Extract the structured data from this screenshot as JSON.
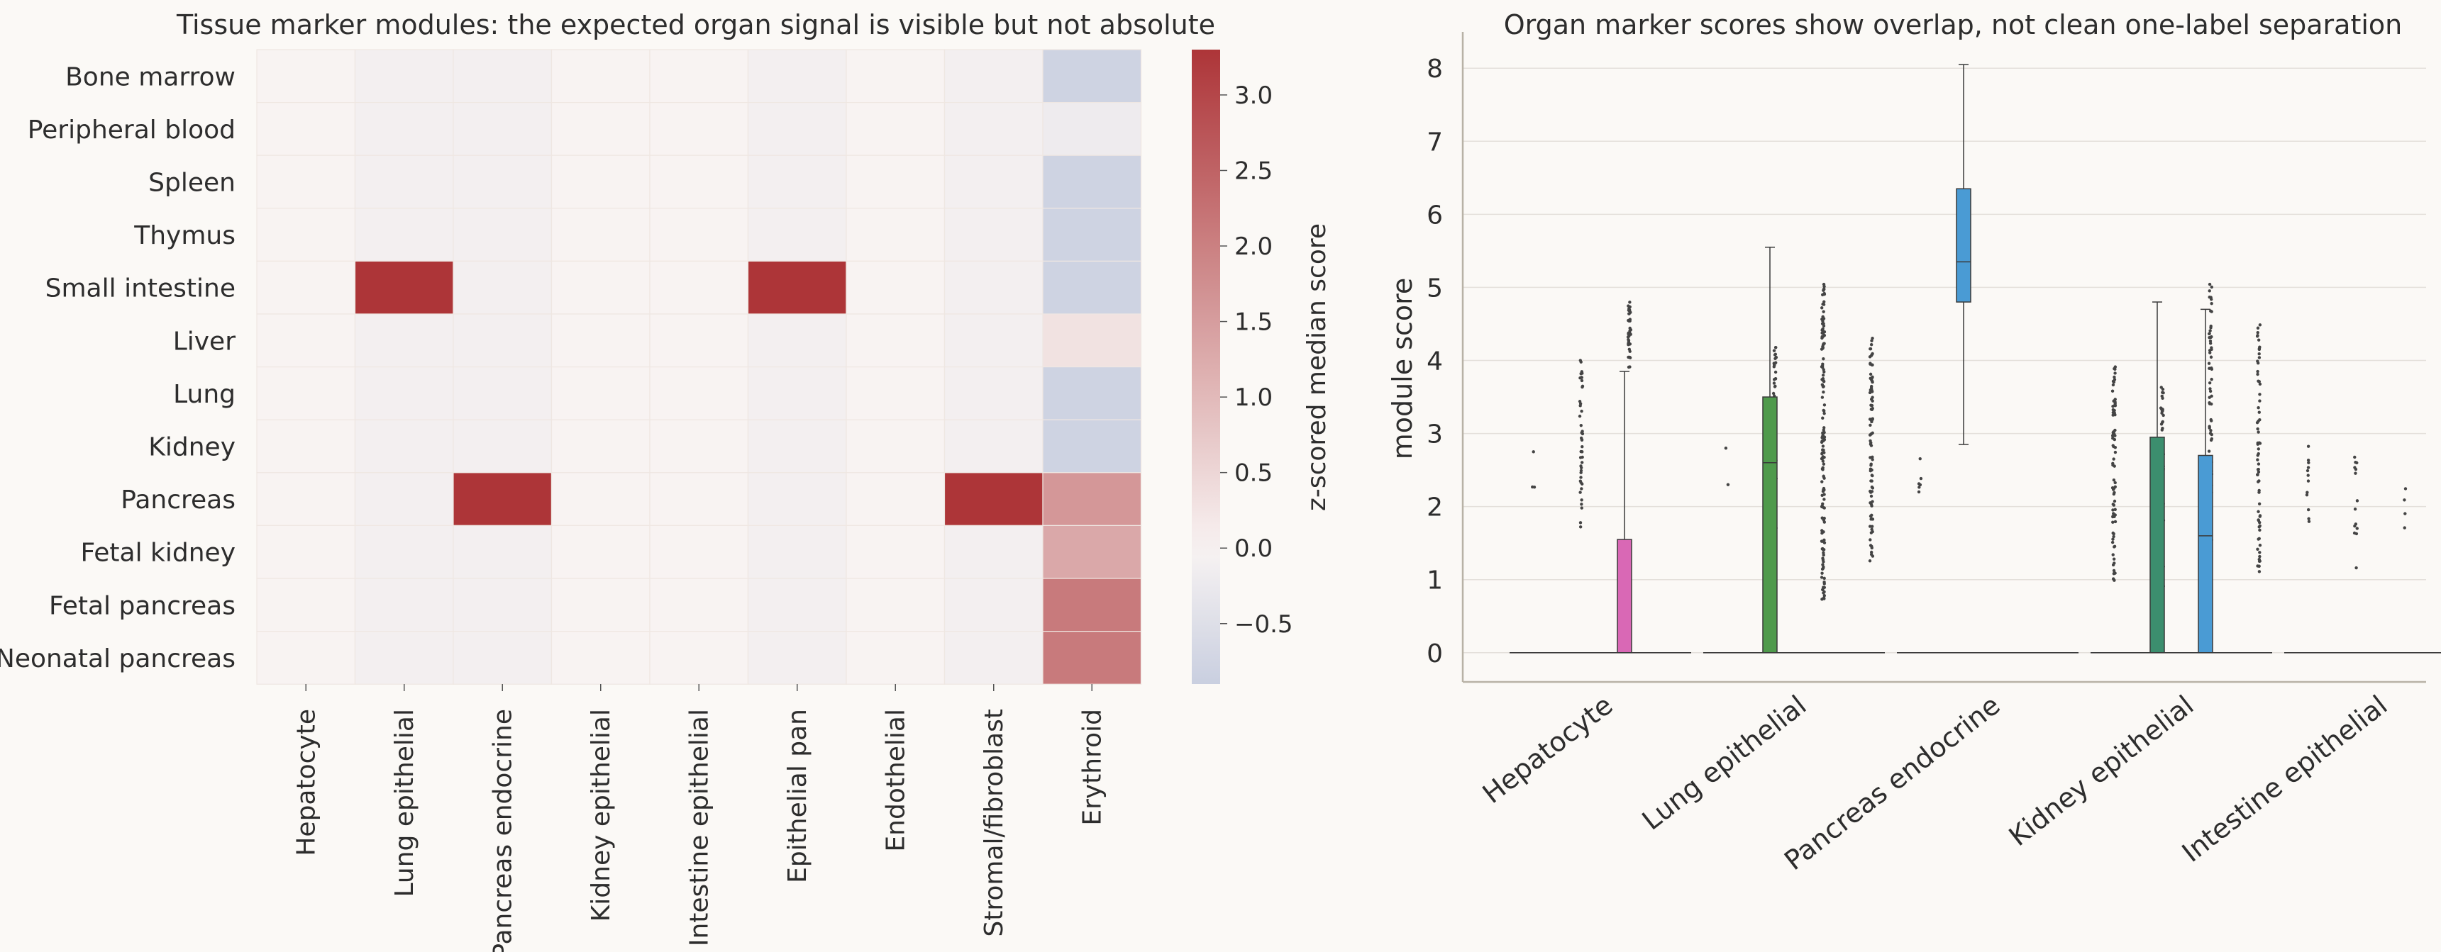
{
  "chart_data": [
    {
      "type": "heatmap",
      "title": "Tissue marker modules: the expected organ signal is visible but not absolute",
      "rows": [
        "Bone marrow",
        "Peripheral blood",
        "Spleen",
        "Thymus",
        "Small intestine",
        "Liver",
        "Lung",
        "Kidney",
        "Pancreas",
        "Fetal kidney",
        "Fetal pancreas",
        "Neonatal pancreas"
      ],
      "columns": [
        "Hepatocyte",
        "Lung epithelial",
        "Pancreas endocrine",
        "Kidney epithelial",
        "Intestine epithelial",
        "Epithelial pan",
        "Endothelial",
        "Stromal/fibroblast",
        "Erythroid"
      ],
      "values": [
        [
          0.0,
          -0.1,
          -0.1,
          0.0,
          0.0,
          -0.1,
          0.0,
          -0.1,
          -0.8
        ],
        [
          0.0,
          -0.1,
          -0.1,
          0.0,
          0.0,
          -0.1,
          0.0,
          -0.1,
          -0.2
        ],
        [
          0.0,
          -0.1,
          -0.1,
          0.0,
          0.0,
          -0.1,
          0.0,
          -0.1,
          -0.8
        ],
        [
          0.0,
          -0.1,
          -0.1,
          0.0,
          0.0,
          -0.1,
          0.0,
          -0.1,
          -0.8
        ],
        [
          0.0,
          3.3,
          -0.1,
          0.0,
          0.0,
          3.3,
          0.0,
          -0.1,
          -0.8
        ],
        [
          0.0,
          -0.1,
          -0.1,
          0.0,
          0.0,
          -0.1,
          0.0,
          -0.1,
          0.3
        ],
        [
          0.0,
          -0.1,
          -0.1,
          0.0,
          0.0,
          -0.1,
          0.0,
          -0.1,
          -0.8
        ],
        [
          0.0,
          -0.1,
          -0.1,
          0.0,
          0.0,
          -0.1,
          0.0,
          -0.1,
          -0.8
        ],
        [
          0.0,
          -0.1,
          3.3,
          0.0,
          0.0,
          -0.1,
          0.0,
          3.3,
          1.6
        ],
        [
          0.0,
          -0.1,
          -0.1,
          0.0,
          0.0,
          -0.1,
          0.0,
          -0.1,
          1.3
        ],
        [
          0.0,
          -0.1,
          -0.1,
          0.0,
          0.0,
          -0.1,
          0.0,
          -0.1,
          2.1
        ],
        [
          0.0,
          -0.1,
          -0.1,
          0.0,
          0.0,
          -0.1,
          0.0,
          -0.1,
          2.1
        ]
      ],
      "vmin": -0.9,
      "vmax": 3.3,
      "colorbar": {
        "label": "z-scored median score",
        "ticks": [
          -0.5,
          0.0,
          0.5,
          1.0,
          1.5,
          2.0,
          2.5,
          3.0
        ],
        "tick_labels": [
          "−0.5",
          "0.0",
          "0.5",
          "1.0",
          "1.5",
          "2.0",
          "2.5",
          "3.0"
        ]
      },
      "colors": {
        "low": "#c9cfe0",
        "mid": "#f8f3f2",
        "high": "#ad3538"
      }
    },
    {
      "type": "box",
      "title": "Organ marker scores show overlap, not clean one-label separation",
      "ylabel": "module score",
      "ylim": [
        -0.4,
        8.4
      ],
      "yticks": [
        0,
        1,
        2,
        3,
        4,
        5,
        6,
        7,
        8
      ],
      "categories": [
        "Hepatocyte",
        "Lung epithelial",
        "Pancreas endocrine",
        "Kidney epithelial",
        "Intestine epithelial"
      ],
      "boxes": [
        {
          "category": 0,
          "slot": 0,
          "color": "#d968b5",
          "q1": 0,
          "median": 0,
          "q3": 0,
          "whislo": 0,
          "whishi": 0,
          "outliers": [
            {
              "y0": 2.2,
              "y1": 2.3,
              "n": 2
            },
            {
              "y0": 2.75,
              "y1": 2.75,
              "n": 1
            }
          ]
        },
        {
          "category": 0,
          "slot": 1,
          "color": "#d968b5",
          "q1": 0,
          "median": 0,
          "q3": 0,
          "whislo": 0,
          "whishi": 0,
          "outliers": [
            {
              "y0": 1.7,
              "y1": 4.1,
              "n": 45
            }
          ]
        },
        {
          "category": 0,
          "slot": 2,
          "color": "#d968b5",
          "q1": 0,
          "median": 0,
          "q3": 1.55,
          "whislo": 0,
          "whishi": 3.85,
          "outliers": [
            {
              "y0": 3.9,
              "y1": 4.8,
              "n": 40
            }
          ]
        },
        {
          "category": 1,
          "slot": 0,
          "color": "#4f9a4c",
          "q1": 0,
          "median": 0,
          "q3": 0,
          "whislo": 0,
          "whishi": 0,
          "outliers": [
            {
              "y0": 2.3,
              "y1": 2.3,
              "n": 1
            },
            {
              "y0": 2.8,
              "y1": 2.8,
              "n": 1
            }
          ]
        },
        {
          "category": 1,
          "slot": 1,
          "color": "#4f9a4c",
          "q1": 0,
          "median": 2.6,
          "q3": 3.5,
          "whislo": 0,
          "whishi": 5.55,
          "outliers": [
            {
              "y0": 1.4,
              "y1": 4.2,
              "n": 60
            }
          ]
        },
        {
          "category": 1,
          "slot": 2,
          "color": "#4f9a4c",
          "q1": 0,
          "median": 0,
          "q3": 0,
          "whislo": 0,
          "whishi": 0,
          "outliers": [
            {
              "y0": 0.7,
              "y1": 5.05,
              "n": 150
            }
          ]
        },
        {
          "category": 1,
          "slot": 3,
          "color": "#4f9a4c",
          "q1": 0,
          "median": 0,
          "q3": 0,
          "whislo": 0,
          "whishi": 0,
          "outliers": [
            {
              "y0": 1.2,
              "y1": 4.4,
              "n": 90
            }
          ]
        },
        {
          "category": 2,
          "slot": 0,
          "color": "#4a9bd4",
          "q1": 0,
          "median": 0,
          "q3": 0,
          "whislo": 0,
          "whishi": 0,
          "outliers": [
            {
              "y0": 2.2,
              "y1": 2.95,
              "n": 6
            }
          ]
        },
        {
          "category": 2,
          "slot": 1,
          "color": "#4a9bd4",
          "q1": 4.8,
          "median": 5.35,
          "q3": 6.35,
          "whislo": 2.85,
          "whishi": 8.05,
          "outliers": []
        },
        {
          "category": 2,
          "slot": 2,
          "color": "#4a9bd4",
          "q1": 0,
          "median": 0,
          "q3": 0,
          "whislo": 0,
          "whishi": 0,
          "outliers": []
        },
        {
          "category": 3,
          "slot": 0,
          "color": "#3c8e6e",
          "q1": 0,
          "median": 0,
          "q3": 0,
          "whislo": 0,
          "whishi": 0,
          "outliers": [
            {
              "y0": 0.9,
              "y1": 4.0,
              "n": 80
            }
          ]
        },
        {
          "category": 3,
          "slot": 1,
          "color": "#3c8e6e",
          "q1": 0,
          "median": 0,
          "q3": 2.95,
          "whislo": 0,
          "whishi": 4.8,
          "outliers": [
            {
              "y0": 0.9,
              "y1": 3.7,
              "n": 70
            }
          ]
        },
        {
          "category": 3,
          "slot": 2,
          "color": "#4a9bd4",
          "q1": 0,
          "median": 1.6,
          "q3": 2.7,
          "whislo": 0,
          "whishi": 4.7,
          "outliers": [
            {
              "y0": 1.2,
              "y1": 5.15,
              "n": 80
            }
          ]
        },
        {
          "category": 3,
          "slot": 3,
          "color": "#4a9bd4",
          "q1": 0,
          "median": 0,
          "q3": 0,
          "whislo": 0,
          "whishi": 0,
          "outliers": [
            {
              "y0": 1.1,
              "y1": 4.5,
              "n": 70
            }
          ]
        },
        {
          "category": 4,
          "slot": 0,
          "color": "#4a9bd4",
          "q1": 0,
          "median": 0,
          "q3": 0,
          "whislo": 0,
          "whishi": 0,
          "outliers": [
            {
              "y0": 1.45,
              "y1": 2.95,
              "n": 12
            }
          ]
        },
        {
          "category": 4,
          "slot": 1,
          "color": "#4a9bd4",
          "q1": 0,
          "median": 0,
          "q3": 0,
          "whislo": 0,
          "whishi": 0,
          "outliers": [
            {
              "y0": 1.1,
              "y1": 2.9,
              "n": 14
            }
          ]
        },
        {
          "category": 4,
          "slot": 2,
          "color": "#4a9bd4",
          "q1": 0,
          "median": 0,
          "q3": 0,
          "whislo": 0,
          "whishi": 0,
          "outliers": [
            {
              "y0": 1.65,
              "y1": 2.3,
              "n": 4
            }
          ]
        }
      ]
    }
  ]
}
